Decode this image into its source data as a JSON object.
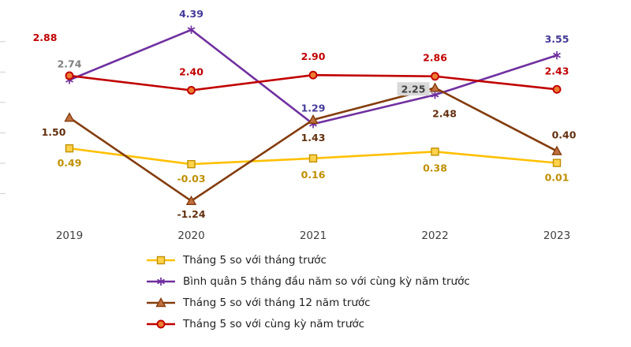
{
  "chart_data": {
    "type": "line",
    "title": "",
    "xlabel": "",
    "ylabel": "",
    "categories": [
      "2019",
      "2020",
      "2021",
      "2022",
      "2023"
    ],
    "series": [
      {
        "name": "Tháng 5 so với tháng trước",
        "marker": "square",
        "line_color": "#FFC000",
        "marker_fill": "#FFD24D",
        "marker_stroke": "#BF9000",
        "label_color": "#BF8F00",
        "values": [
          0.49,
          -0.03,
          0.16,
          0.38,
          0.01
        ]
      },
      {
        "name": "Bình quân 5 tháng đầu năm so với cùng kỳ năm trước",
        "marker": "asterisk",
        "line_color": "#7030A0",
        "marker_fill": "#7030A0",
        "marker_stroke": "#7030A0",
        "label_color": "#443A99",
        "values": [
          2.74,
          4.39,
          1.29,
          2.25,
          3.55
        ]
      },
      {
        "name": "Tháng 5 so với tháng 12 năm trước",
        "marker": "triangle",
        "line_color": "#843C0C",
        "marker_fill": "#C07040",
        "marker_stroke": "#843C0C",
        "label_color": "#63300F",
        "values": [
          1.5,
          -1.24,
          1.43,
          2.48,
          0.4
        ]
      },
      {
        "name": "Tháng 5 so với cùng kỳ năm trước",
        "marker": "circle",
        "line_color": "#C00000",
        "marker_fill": "#ED7D31",
        "marker_stroke": "#C00000",
        "label_color": "#C00000",
        "values": [
          2.88,
          2.4,
          2.9,
          2.86,
          2.43
        ]
      }
    ],
    "value_labels": [
      [
        "0.49",
        "-0.03",
        "0.16",
        "0.38",
        "0.01"
      ],
      [
        "2.74",
        "4.39",
        "1.29",
        "2.25",
        "3.55"
      ],
      [
        "1.50",
        "-1.24",
        "1.43",
        "2.48",
        "0.40"
      ],
      [
        "2.88",
        "2.40",
        "2.90",
        "2.86",
        "2.43"
      ]
    ],
    "ylim": [
      -1.8,
      4.8
    ],
    "grid": false,
    "legend_position": "bottom-left",
    "annotation_styles": {
      "gray_label": "series 1 point 2019 (2.74) drawn in gray",
      "callout_label": "series 1 point 2022 (2.25) drawn in gray callout box"
    }
  }
}
